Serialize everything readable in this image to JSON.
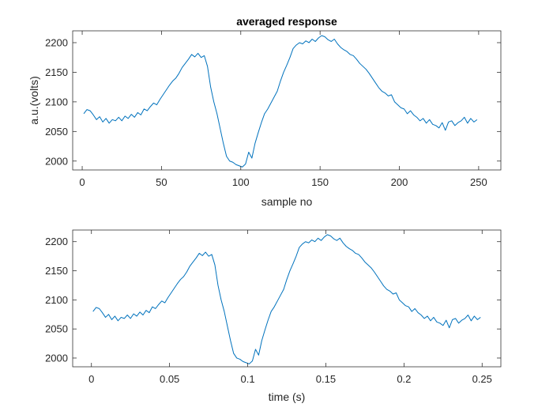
{
  "colors": {
    "line": "#0072BD",
    "axes": "#262626",
    "background": "#ffffff"
  },
  "chart_data": [
    {
      "type": "line",
      "title": "averaged response",
      "xlabel": "sample no",
      "ylabel": "a.u.(volts)",
      "xlim": [
        -6,
        264
      ],
      "ylim": [
        1985,
        2220
      ],
      "xticks": [
        0,
        50,
        100,
        150,
        200,
        250
      ],
      "yticks": [
        2000,
        2050,
        2100,
        2150,
        2200
      ],
      "xtick_labels": [
        "0",
        "50",
        "100",
        "150",
        "200",
        "250"
      ],
      "ytick_labels": [
        "2000",
        "2050",
        "2100",
        "2150",
        "2200"
      ],
      "grid": false,
      "series": [
        {
          "x": [
            1,
            3,
            5,
            7,
            9,
            11,
            13,
            15,
            17,
            19,
            21,
            23,
            25,
            27,
            29,
            31,
            33,
            35,
            37,
            39,
            41,
            43,
            45,
            47,
            49,
            51,
            53,
            55,
            57,
            59,
            61,
            63,
            65,
            67,
            69,
            71,
            73,
            75,
            77,
            79,
            81,
            83,
            85,
            87,
            89,
            91,
            93,
            95,
            97,
            99,
            101,
            103,
            105,
            107,
            109,
            111,
            113,
            115,
            117,
            119,
            121,
            123,
            125,
            127,
            129,
            131,
            133,
            135,
            137,
            139,
            141,
            143,
            145,
            147,
            149,
            151,
            153,
            155,
            157,
            159,
            161,
            163,
            165,
            167,
            169,
            171,
            173,
            175,
            177,
            179,
            181,
            183,
            185,
            187,
            189,
            191,
            193,
            195,
            197,
            199,
            201,
            203,
            205,
            207,
            209,
            211,
            213,
            215,
            217,
            219,
            221,
            223,
            225,
            227,
            229,
            231,
            233,
            235,
            237,
            239,
            241,
            243,
            245,
            247,
            249
          ],
          "y": [
            2080,
            2087,
            2085,
            2078,
            2070,
            2075,
            2066,
            2072,
            2064,
            2070,
            2068,
            2074,
            2068,
            2076,
            2072,
            2079,
            2074,
            2082,
            2078,
            2088,
            2085,
            2092,
            2098,
            2095,
            2104,
            2112,
            2120,
            2128,
            2135,
            2140,
            2148,
            2158,
            2165,
            2172,
            2180,
            2176,
            2182,
            2175,
            2178,
            2160,
            2125,
            2100,
            2080,
            2055,
            2030,
            2008,
            2000,
            1998,
            1994,
            1992,
            1990,
            1995,
            2015,
            2005,
            2030,
            2048,
            2065,
            2080,
            2088,
            2098,
            2108,
            2118,
            2135,
            2150,
            2162,
            2175,
            2190,
            2196,
            2200,
            2198,
            2203,
            2200,
            2206,
            2202,
            2208,
            2212,
            2210,
            2205,
            2202,
            2206,
            2198,
            2192,
            2188,
            2185,
            2180,
            2178,
            2172,
            2165,
            2160,
            2155,
            2148,
            2140,
            2132,
            2124,
            2118,
            2115,
            2110,
            2112,
            2100,
            2095,
            2090,
            2088,
            2080,
            2085,
            2078,
            2074,
            2068,
            2072,
            2064,
            2070,
            2062,
            2060,
            2056,
            2065,
            2052,
            2066,
            2068,
            2060,
            2065,
            2068,
            2074,
            2064,
            2072,
            2066,
            2070
          ]
        }
      ]
    },
    {
      "type": "line",
      "title": "",
      "xlabel": "time (s)",
      "ylabel": "",
      "xlim": [
        -0.012,
        0.262
      ],
      "ylim": [
        1985,
        2220
      ],
      "xticks": [
        0,
        0.05,
        0.1,
        0.15,
        0.2,
        0.25
      ],
      "yticks": [
        2000,
        2050,
        2100,
        2150,
        2200
      ],
      "xtick_labels": [
        "0",
        "0.05",
        "0.1",
        "0.15",
        "0.2",
        "0.25"
      ],
      "ytick_labels": [
        "2000",
        "2050",
        "2100",
        "2150",
        "2200"
      ],
      "grid": false,
      "series": [
        {
          "x": [
            0.001,
            0.003,
            0.005,
            0.007,
            0.009,
            0.011,
            0.013,
            0.015,
            0.017,
            0.019,
            0.021,
            0.023,
            0.025,
            0.027,
            0.029,
            0.031,
            0.033,
            0.035,
            0.037,
            0.039,
            0.041,
            0.043,
            0.045,
            0.047,
            0.049,
            0.051,
            0.053,
            0.055,
            0.057,
            0.059,
            0.061,
            0.063,
            0.065,
            0.067,
            0.069,
            0.071,
            0.073,
            0.075,
            0.077,
            0.079,
            0.081,
            0.083,
            0.085,
            0.087,
            0.089,
            0.091,
            0.093,
            0.095,
            0.097,
            0.099,
            0.101,
            0.103,
            0.105,
            0.107,
            0.109,
            0.111,
            0.113,
            0.115,
            0.117,
            0.119,
            0.121,
            0.123,
            0.125,
            0.127,
            0.129,
            0.131,
            0.133,
            0.135,
            0.137,
            0.139,
            0.141,
            0.143,
            0.145,
            0.147,
            0.149,
            0.151,
            0.153,
            0.155,
            0.157,
            0.159,
            0.161,
            0.163,
            0.165,
            0.167,
            0.169,
            0.171,
            0.173,
            0.175,
            0.177,
            0.179,
            0.181,
            0.183,
            0.185,
            0.187,
            0.189,
            0.191,
            0.193,
            0.195,
            0.197,
            0.199,
            0.201,
            0.203,
            0.205,
            0.207,
            0.209,
            0.211,
            0.213,
            0.215,
            0.217,
            0.219,
            0.221,
            0.223,
            0.225,
            0.227,
            0.229,
            0.231,
            0.233,
            0.235,
            0.237,
            0.239,
            0.241,
            0.243,
            0.245,
            0.247,
            0.249
          ],
          "y": [
            2080,
            2087,
            2085,
            2078,
            2070,
            2075,
            2066,
            2072,
            2064,
            2070,
            2068,
            2074,
            2068,
            2076,
            2072,
            2079,
            2074,
            2082,
            2078,
            2088,
            2085,
            2092,
            2098,
            2095,
            2104,
            2112,
            2120,
            2128,
            2135,
            2140,
            2148,
            2158,
            2165,
            2172,
            2180,
            2176,
            2182,
            2175,
            2178,
            2160,
            2125,
            2100,
            2080,
            2055,
            2030,
            2008,
            2000,
            1998,
            1994,
            1992,
            1990,
            1995,
            2015,
            2005,
            2030,
            2048,
            2065,
            2080,
            2088,
            2098,
            2108,
            2118,
            2135,
            2150,
            2162,
            2175,
            2190,
            2196,
            2200,
            2198,
            2203,
            2200,
            2206,
            2202,
            2208,
            2212,
            2210,
            2205,
            2202,
            2206,
            2198,
            2192,
            2188,
            2185,
            2180,
            2178,
            2172,
            2165,
            2160,
            2155,
            2148,
            2140,
            2132,
            2124,
            2118,
            2115,
            2110,
            2112,
            2100,
            2095,
            2090,
            2088,
            2080,
            2085,
            2078,
            2074,
            2068,
            2072,
            2064,
            2070,
            2062,
            2060,
            2056,
            2065,
            2052,
            2066,
            2068,
            2060,
            2065,
            2068,
            2074,
            2064,
            2072,
            2066,
            2070
          ]
        }
      ]
    }
  ]
}
